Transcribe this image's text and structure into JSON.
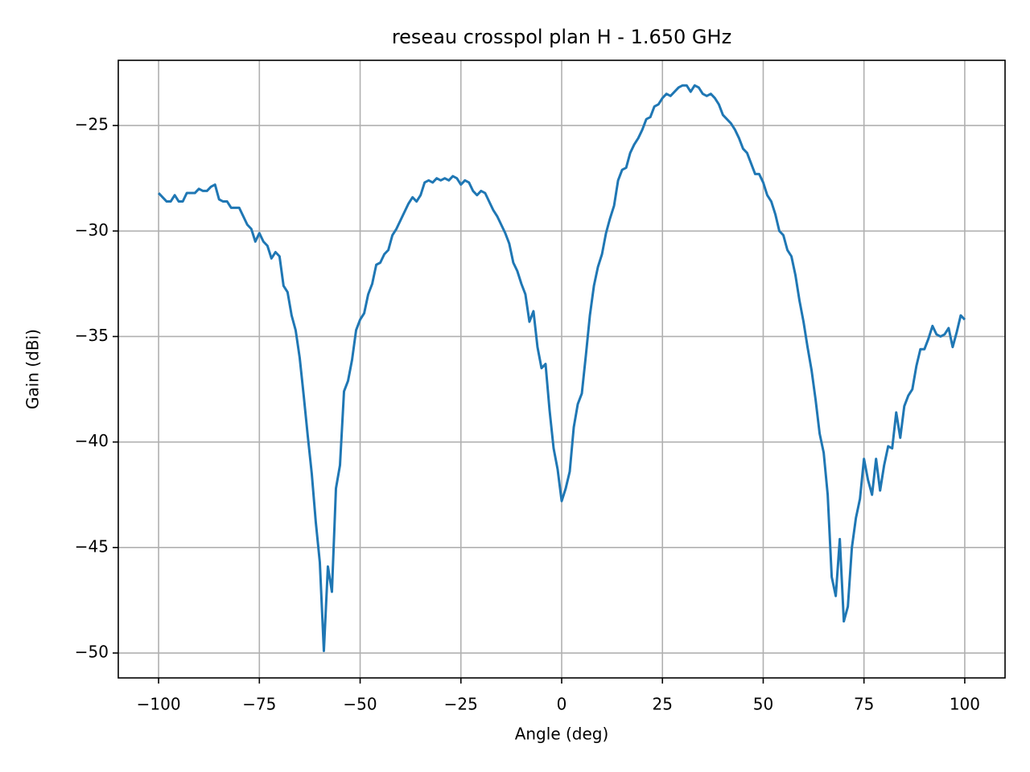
{
  "chart_data": {
    "type": "line",
    "title": "reseau crosspol plan H - 1.650 GHz",
    "xlabel": "Angle (deg)",
    "ylabel": "Gain (dBi)",
    "grid": true,
    "xlim": [
      -110,
      110
    ],
    "ylim": [
      -51.18,
      -21.91
    ],
    "xticks": [
      {
        "value": -100,
        "label": "−100"
      },
      {
        "value": -75,
        "label": "−75"
      },
      {
        "value": -50,
        "label": "−50"
      },
      {
        "value": -25,
        "label": "−25"
      },
      0,
      25,
      50,
      75,
      100
    ],
    "yticks": [
      {
        "value": -50,
        "label": "−50"
      },
      {
        "value": -45,
        "label": "−45"
      },
      {
        "value": -40,
        "label": "−40"
      },
      {
        "value": -35,
        "label": "−35"
      },
      {
        "value": -30,
        "label": "−30"
      },
      {
        "value": -25,
        "label": "−25"
      }
    ],
    "x": [
      -100,
      -99,
      -98,
      -97,
      -96,
      -95,
      -94,
      -93,
      -92,
      -91,
      -90,
      -89,
      -88,
      -87,
      -86,
      -85,
      -84,
      -83,
      -82,
      -81,
      -80,
      -79,
      -78,
      -77,
      -76,
      -75,
      -74,
      -73,
      -72,
      -71,
      -70,
      -69,
      -68,
      -67,
      -66,
      -65,
      -64,
      -63,
      -62,
      -61,
      -60,
      -59,
      -58,
      -57,
      -56,
      -55,
      -54,
      -53,
      -52,
      -51,
      -50,
      -49,
      -48,
      -47,
      -46,
      -45,
      -44,
      -43,
      -42,
      -41,
      -40,
      -39,
      -38,
      -37,
      -36,
      -35,
      -34,
      -33,
      -32,
      -31,
      -30,
      -29,
      -28,
      -27,
      -26,
      -25,
      -24,
      -23,
      -22,
      -21,
      -20,
      -19,
      -18,
      -17,
      -16,
      -15,
      -14,
      -13,
      -12,
      -11,
      -10,
      -9,
      -8,
      -7,
      -6,
      -5,
      -4,
      -3,
      -2,
      -1,
      0,
      1,
      2,
      3,
      4,
      5,
      6,
      7,
      8,
      9,
      10,
      11,
      12,
      13,
      14,
      15,
      16,
      17,
      18,
      19,
      20,
      21,
      22,
      23,
      24,
      25,
      26,
      27,
      28,
      29,
      30,
      31,
      32,
      33,
      34,
      35,
      36,
      37,
      38,
      39,
      40,
      41,
      42,
      43,
      44,
      45,
      46,
      47,
      48,
      49,
      50,
      51,
      52,
      53,
      54,
      55,
      56,
      57,
      58,
      59,
      60,
      61,
      62,
      63,
      64,
      65,
      66,
      67,
      68,
      69,
      70,
      71,
      72,
      73,
      74,
      75,
      76,
      77,
      78,
      79,
      80,
      81,
      82,
      83,
      84,
      85,
      86,
      87,
      88,
      89,
      90,
      91,
      92,
      93,
      94,
      95,
      96,
      97,
      98,
      99,
      100
    ],
    "series": [
      {
        "color": "#1f77b4",
        "values": [
          -28.2,
          -28.4,
          -28.6,
          -28.6,
          -28.3,
          -28.6,
          -28.6,
          -28.2,
          -28.2,
          -28.2,
          -28.0,
          -28.1,
          -28.1,
          -27.9,
          -27.8,
          -28.5,
          -28.6,
          -28.6,
          -28.9,
          -28.9,
          -28.9,
          -29.3,
          -29.7,
          -29.9,
          -30.5,
          -30.1,
          -30.5,
          -30.7,
          -31.3,
          -31.0,
          -31.2,
          -32.6,
          -32.9,
          -34.0,
          -34.7,
          -36.0,
          -37.8,
          -39.7,
          -41.5,
          -43.8,
          -45.7,
          -49.9,
          -45.9,
          -47.1,
          -42.2,
          -41.1,
          -37.6,
          -37.1,
          -36.1,
          -34.7,
          -34.2,
          -33.9,
          -33.0,
          -32.5,
          -31.6,
          -31.5,
          -31.1,
          -30.9,
          -30.2,
          -29.9,
          -29.5,
          -29.1,
          -28.7,
          -28.4,
          -28.6,
          -28.3,
          -27.7,
          -27.6,
          -27.7,
          -27.5,
          -27.6,
          -27.5,
          -27.6,
          -27.4,
          -27.5,
          -27.8,
          -27.6,
          -27.7,
          -28.1,
          -28.3,
          -28.1,
          -28.2,
          -28.6,
          -29.0,
          -29.3,
          -29.7,
          -30.1,
          -30.6,
          -31.5,
          -31.9,
          -32.5,
          -33.0,
          -34.3,
          -33.8,
          -35.5,
          -36.5,
          -36.3,
          -38.5,
          -40.3,
          -41.3,
          -42.8,
          -42.2,
          -41.4,
          -39.3,
          -38.2,
          -37.7,
          -35.9,
          -34.0,
          -32.6,
          -31.7,
          -31.1,
          -30.1,
          -29.4,
          -28.8,
          -27.6,
          -27.1,
          -27.0,
          -26.3,
          -25.9,
          -25.6,
          -25.2,
          -24.7,
          -24.6,
          -24.1,
          -24.0,
          -23.7,
          -23.5,
          -23.6,
          -23.4,
          -23.2,
          -23.1,
          -23.1,
          -23.4,
          -23.1,
          -23.2,
          -23.5,
          -23.6,
          -23.5,
          -23.7,
          -24.0,
          -24.5,
          -24.7,
          -24.9,
          -25.2,
          -25.6,
          -26.1,
          -26.3,
          -26.8,
          -27.3,
          -27.3,
          -27.7,
          -28.3,
          -28.6,
          -29.2,
          -30.0,
          -30.2,
          -30.9,
          -31.2,
          -32.1,
          -33.3,
          -34.3,
          -35.5,
          -36.6,
          -38.0,
          -39.6,
          -40.5,
          -42.5,
          -46.4,
          -47.3,
          -44.6,
          -48.5,
          -47.8,
          -45.0,
          -43.6,
          -42.7,
          -40.8,
          -41.8,
          -42.5,
          -40.8,
          -42.3,
          -41.1,
          -40.2,
          -40.3,
          -38.6,
          -39.8,
          -38.3,
          -37.8,
          -37.5,
          -36.4,
          -35.6,
          -35.6,
          -35.1,
          -34.5,
          -34.9,
          -35.0,
          -34.9,
          -34.6,
          -35.5,
          -34.8,
          -34.0,
          -34.2
        ]
      }
    ]
  }
}
